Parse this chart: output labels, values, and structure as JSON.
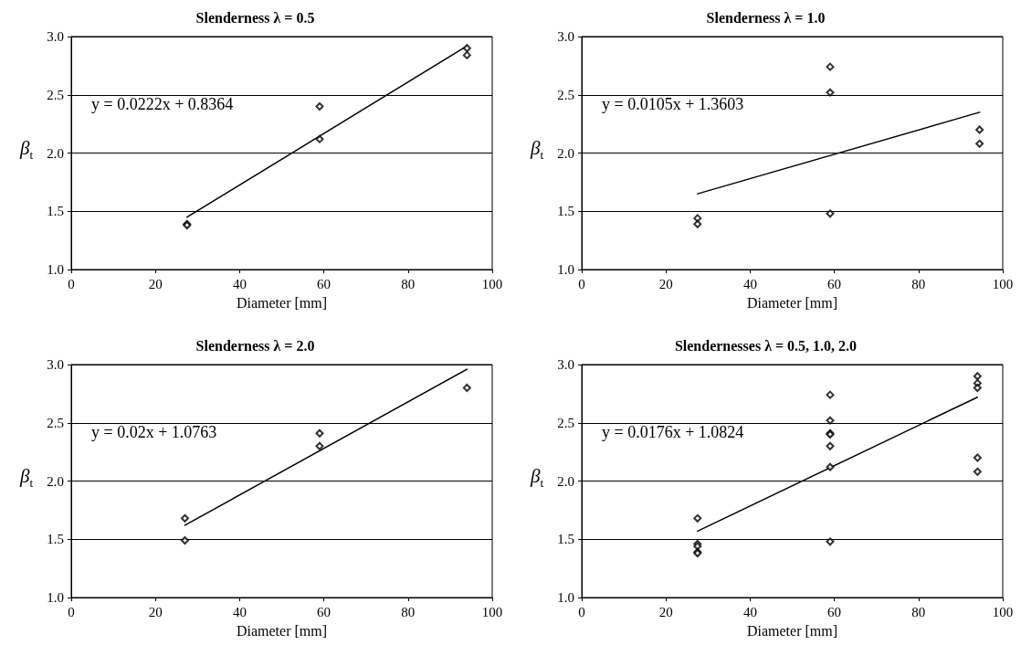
{
  "chart_data": [
    {
      "type": "scatter",
      "title": "Slenderness λ = 0.5",
      "xlabel": "Diameter [mm]",
      "ylabel": "β$_{t}$",
      "annotations": [
        "y = 0.0222x + 0.8364"
      ],
      "xlim": [
        0,
        100
      ],
      "xticks": [
        0,
        20,
        40,
        60,
        80,
        100
      ],
      "ylim": [
        1,
        3
      ],
      "yticks": [
        {
          "value": 1,
          "label": "1.0"
        },
        {
          "value": 1.5,
          "label": "1.5"
        },
        {
          "value": 2,
          "label": "2.0"
        },
        {
          "value": 2.5,
          "label": "2.5"
        },
        {
          "value": 3,
          "label": "3.0"
        }
      ],
      "grid": "y",
      "marker": "diamond",
      "series": [
        {
          "color": "#000000",
          "x": [
            27.5,
            27.5,
            59,
            59,
            94,
            94
          ],
          "values": [
            1.39,
            1.38,
            2.4,
            2.12,
            2.9,
            2.84
          ]
        },
        {
          "type": "line",
          "color": "#000000",
          "marker": "none",
          "line_style": "solid",
          "x": [
            27.5,
            94
          ],
          "values": [
            1.45,
            2.92
          ]
        }
      ]
    },
    {
      "type": "scatter",
      "title": "Slenderness λ = 1.0",
      "xlabel": "Diameter [mm]",
      "ylabel": "β$_{t}$",
      "annotations": [
        "y = 0.0105x + 1.3603"
      ],
      "xlim": [
        0,
        100
      ],
      "xticks": [
        0,
        20,
        40,
        60,
        80,
        100
      ],
      "ylim": [
        1,
        3
      ],
      "yticks": [
        {
          "value": 1,
          "label": "1.0"
        },
        {
          "value": 1.5,
          "label": "1.5"
        },
        {
          "value": 2,
          "label": "2.0"
        },
        {
          "value": 2.5,
          "label": "2.5"
        },
        {
          "value": 3,
          "label": "3.0"
        }
      ],
      "grid": "y",
      "marker": "diamond",
      "series": [
        {
          "color": "#000000",
          "x": [
            27.5,
            27.5,
            59,
            59,
            59,
            94.5,
            94.5
          ],
          "values": [
            1.44,
            1.39,
            2.74,
            2.52,
            1.48,
            2.2,
            2.08
          ]
        },
        {
          "type": "line",
          "color": "#000000",
          "marker": "none",
          "line_style": "solid",
          "x": [
            27.5,
            94.5
          ],
          "values": [
            1.65,
            2.35
          ]
        }
      ]
    },
    {
      "type": "scatter",
      "title": "Slenderness λ = 2.0",
      "xlabel": "Diameter [mm]",
      "ylabel": "β$_{t}$",
      "annotations": [
        "y = 0.02x + 1.0763"
      ],
      "xlim": [
        0,
        100
      ],
      "xticks": [
        0,
        20,
        40,
        60,
        80,
        100
      ],
      "ylim": [
        1,
        3
      ],
      "yticks": [
        {
          "value": 1,
          "label": "1.0"
        },
        {
          "value": 1.5,
          "label": "1.5"
        },
        {
          "value": 2,
          "label": "2.0"
        },
        {
          "value": 2.5,
          "label": "2.5"
        },
        {
          "value": 3,
          "label": "3.0"
        }
      ],
      "grid": "y",
      "marker": "diamond",
      "series": [
        {
          "color": "#000000",
          "x": [
            27,
            27,
            59,
            59,
            94
          ],
          "values": [
            1.68,
            1.49,
            2.41,
            2.3,
            2.8
          ]
        },
        {
          "type": "line",
          "color": "#000000",
          "marker": "none",
          "line_style": "solid",
          "x": [
            27,
            94
          ],
          "values": [
            1.62,
            2.96
          ]
        }
      ]
    },
    {
      "type": "scatter",
      "title": "Slendernesses λ = 0.5, 1.0, 2.0",
      "xlabel": "Diameter [mm]",
      "ylabel": "β$_{t}$",
      "annotations": [
        "y = 0.0176x + 1.0824"
      ],
      "xlim": [
        0,
        100
      ],
      "xticks": [
        0,
        20,
        40,
        60,
        80,
        100
      ],
      "ylim": [
        1,
        3
      ],
      "yticks": [
        {
          "value": 1,
          "label": "1.0"
        },
        {
          "value": 1.5,
          "label": "1.5"
        },
        {
          "value": 2,
          "label": "2.0"
        },
        {
          "value": 2.5,
          "label": "2.5"
        },
        {
          "value": 3,
          "label": "3.0"
        }
      ],
      "grid": "y",
      "marker": "diamond",
      "series": [
        {
          "color": "#000000",
          "x": [
            27.5,
            27.5,
            27.5,
            27.5,
            27.5,
            59,
            59,
            59,
            59,
            59,
            59,
            59,
            94,
            94,
            94,
            94,
            94
          ],
          "values": [
            1.68,
            1.46,
            1.44,
            1.39,
            1.38,
            2.74,
            2.52,
            2.41,
            2.4,
            2.3,
            2.12,
            1.48,
            2.9,
            2.84,
            2.8,
            2.2,
            2.08
          ]
        },
        {
          "type": "line",
          "color": "#000000",
          "marker": "none",
          "line_style": "solid",
          "x": [
            27.5,
            94
          ],
          "values": [
            1.57,
            2.72
          ]
        }
      ]
    }
  ]
}
